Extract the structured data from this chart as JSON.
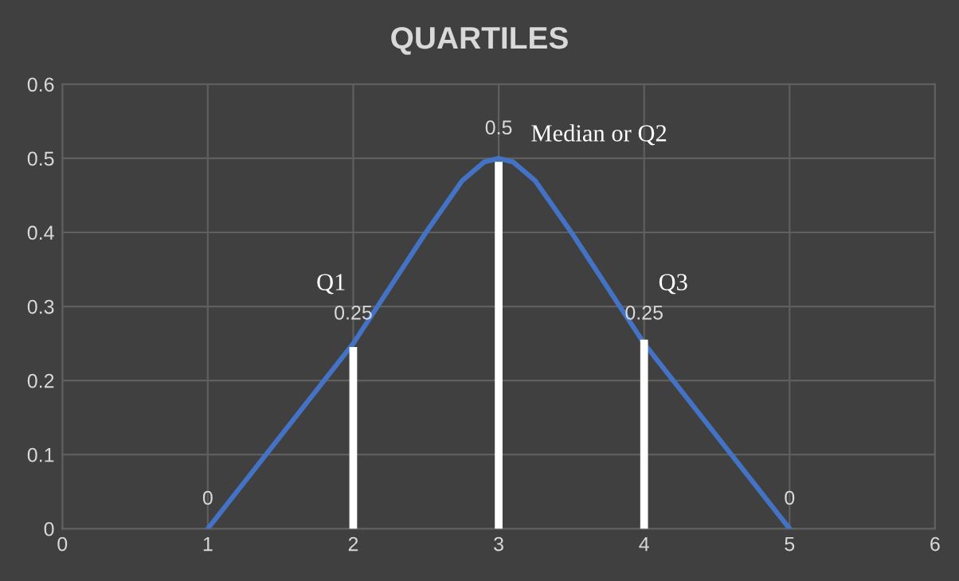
{
  "chart_data": {
    "type": "line",
    "title": "QUARTILES",
    "x": [
      1,
      2,
      2.5,
      2.75,
      2.9,
      3,
      3.1,
      3.25,
      3.5,
      4,
      5
    ],
    "series": [
      {
        "color": "#4472c4",
        "values": [
          0,
          0.25,
          0.4,
          0.47,
          0.495,
          0.5,
          0.495,
          0.47,
          0.4,
          0.25,
          0
        ],
        "value_labels": [
          "0",
          "0.25",
          null,
          null,
          null,
          "0.5",
          null,
          null,
          null,
          "0.25",
          "0"
        ]
      },
      {
        "color": "#ffffff",
        "x": [
          2,
          2
        ],
        "values": [
          0,
          0.24
        ]
      },
      {
        "color": "#ffffff",
        "x": [
          3,
          3
        ],
        "values": [
          0,
          0.49
        ]
      },
      {
        "color": "#ffffff",
        "x": [
          4,
          4
        ],
        "values": [
          0,
          0.25
        ]
      }
    ],
    "xlim": [
      0,
      6
    ],
    "xticks": [
      0,
      1,
      2,
      3,
      4,
      5,
      6
    ],
    "ylim": [
      0,
      0.6
    ],
    "yticks": [
      0,
      0.1,
      0.2,
      0.3,
      0.4,
      0.5,
      0.6
    ],
    "grid": true,
    "marker": "none",
    "line_style": "solid",
    "annotations": [
      "Q1",
      "Median or Q2",
      "Q3"
    ]
  }
}
